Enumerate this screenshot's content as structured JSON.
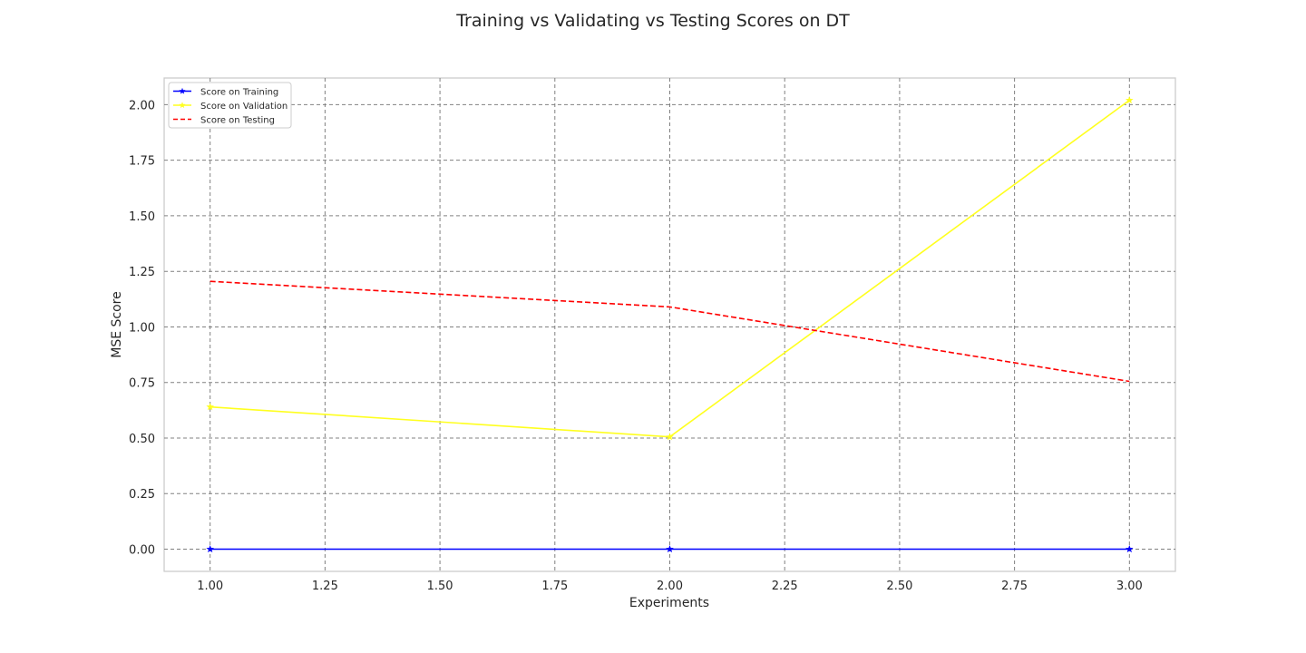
{
  "chart_data": {
    "type": "line",
    "title": "Training vs Validating vs Testing Scores on DT",
    "xlabel": "Experiments",
    "ylabel": "MSE Score",
    "xlim": [
      0.9,
      3.1
    ],
    "ylim": [
      -0.1,
      2.12
    ],
    "xticks": [
      1.0,
      1.25,
      1.5,
      1.75,
      2.0,
      2.25,
      2.5,
      2.75,
      3.0
    ],
    "xtick_labels": [
      "1.00",
      "1.25",
      "1.50",
      "1.75",
      "2.00",
      "2.25",
      "2.50",
      "2.75",
      "3.00"
    ],
    "yticks": [
      0.0,
      0.25,
      0.5,
      0.75,
      1.0,
      1.25,
      1.5,
      1.75,
      2.0
    ],
    "ytick_labels": [
      "0.00",
      "0.25",
      "0.50",
      "0.75",
      "1.00",
      "1.25",
      "1.50",
      "1.75",
      "2.00"
    ],
    "grid": true,
    "legend_position": "top-left",
    "x": [
      1,
      2,
      3
    ],
    "series": [
      {
        "name": "Score on Training",
        "values": [
          0.0,
          0.0,
          0.0
        ],
        "color": "#0000ff",
        "dash": "solid",
        "marker": "star"
      },
      {
        "name": "Score on Validation",
        "values": [
          0.64,
          0.505,
          2.02
        ],
        "color": "#ffff1f",
        "dash": "solid",
        "marker": "star"
      },
      {
        "name": "Score on Testing",
        "values": [
          1.205,
          1.09,
          0.755
        ],
        "color": "#ff0000",
        "dash": "dashed",
        "marker": "none"
      }
    ]
  }
}
